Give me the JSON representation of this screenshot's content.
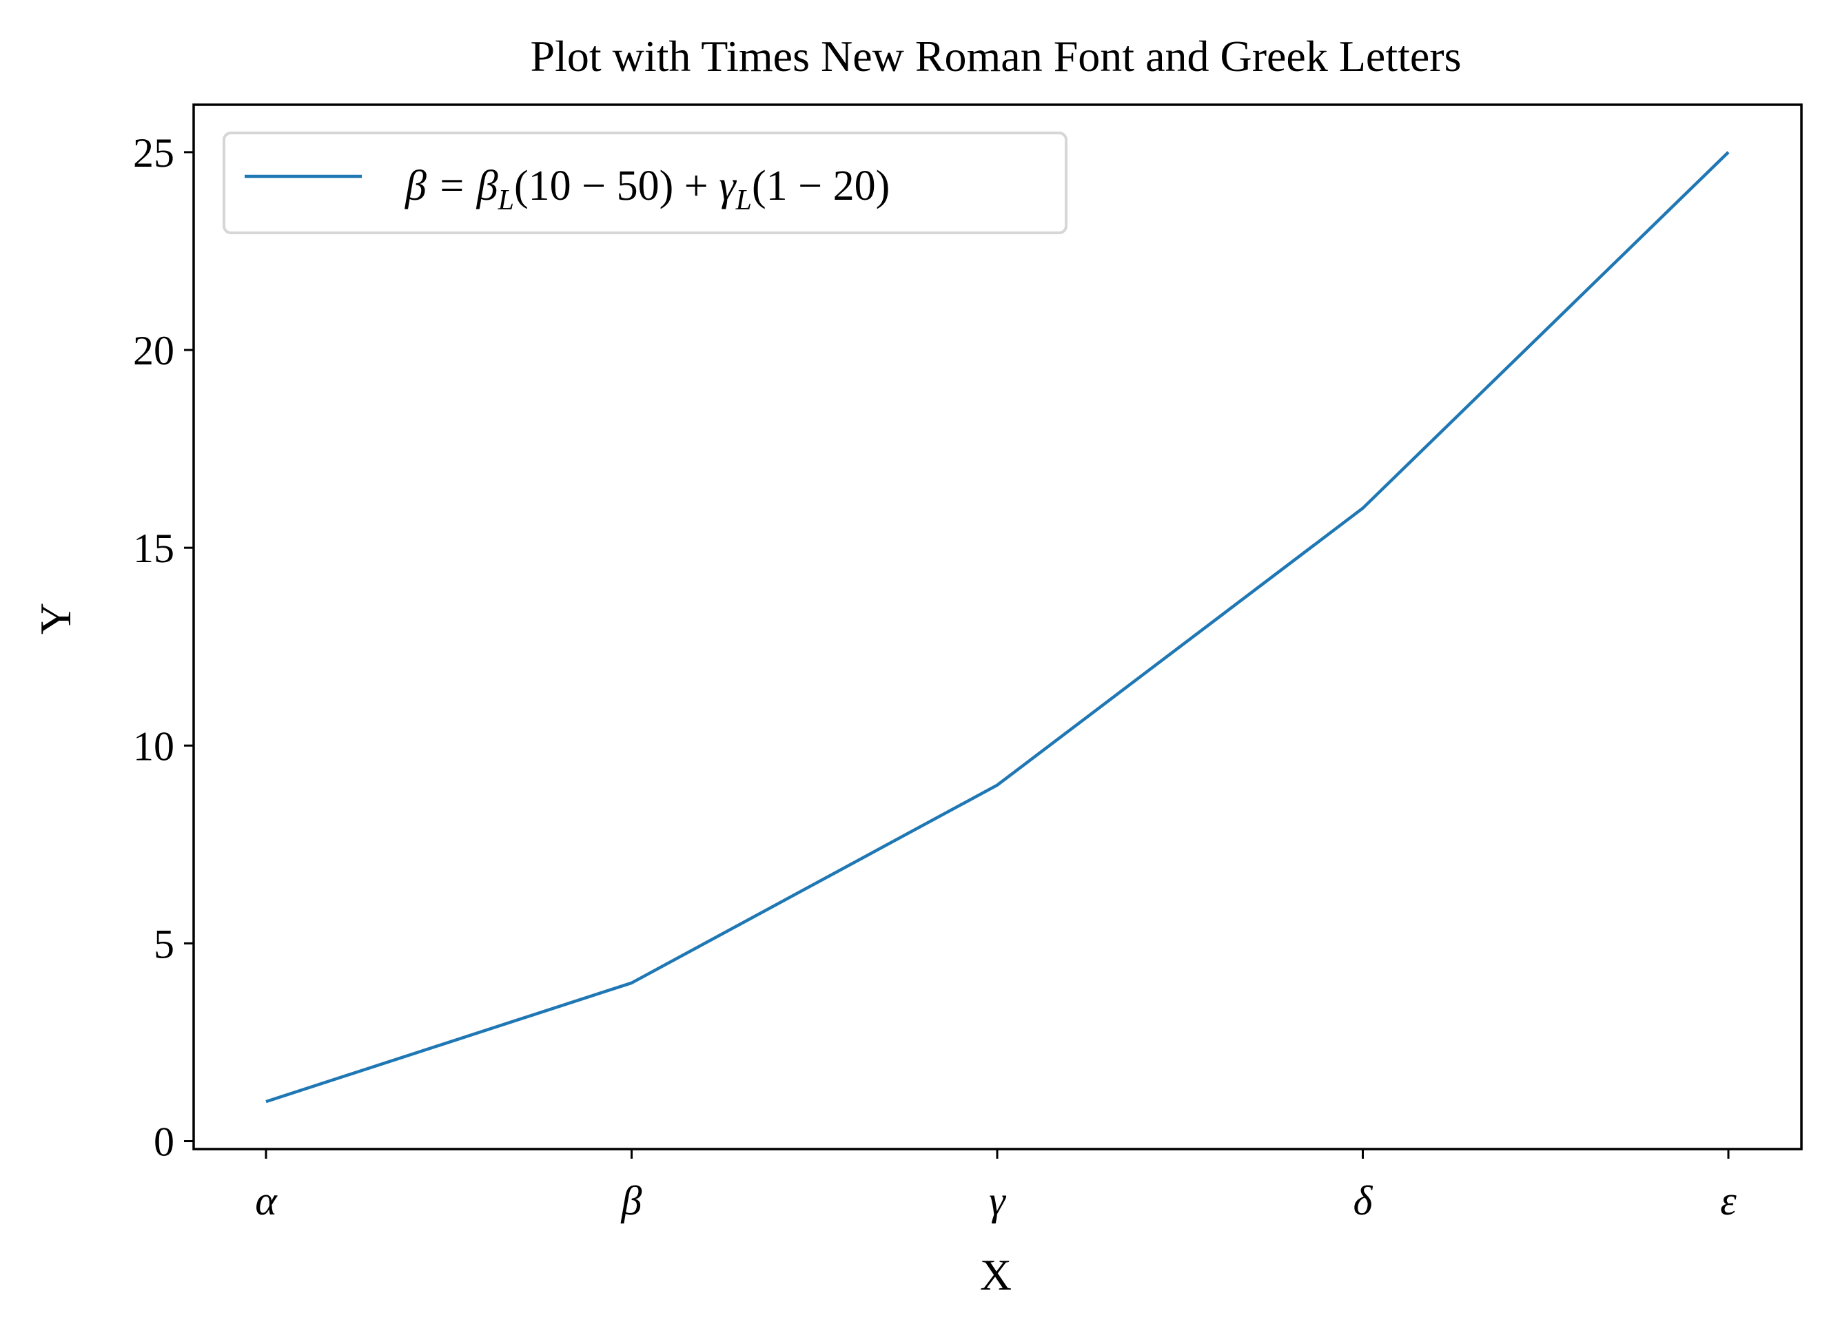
{
  "chart_data": {
    "type": "line",
    "title": "Plot with Times New Roman Font and Greek Letters",
    "xlabel": "X",
    "ylabel": "Y",
    "categories": [
      "α",
      "β",
      "γ",
      "δ",
      "ε"
    ],
    "series": [
      {
        "name": "β = β_L(10 − 50) + γ_L(1 − 20)",
        "values": [
          1,
          4,
          9,
          16,
          25
        ],
        "color": "#1f77b4"
      }
    ],
    "yticks": [
      0,
      5,
      10,
      15,
      20,
      25
    ],
    "ylim": [
      -0.2,
      26.2
    ],
    "grid": false,
    "legend_position": "upper-left"
  }
}
